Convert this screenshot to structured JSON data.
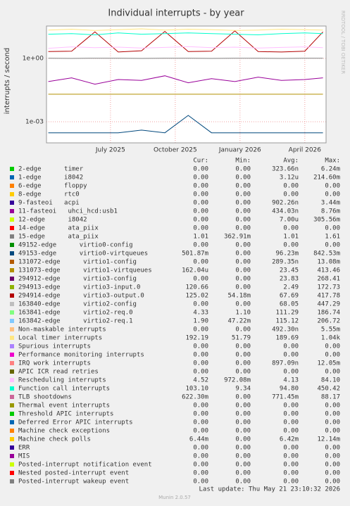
{
  "chart_data": {
    "type": "line",
    "title": "Individual interrupts - by year",
    "y_label": "interrupts / second",
    "side_text": "RRDTOOL / TOBI OETIKER",
    "log_y": true,
    "grid": true,
    "ylim": [
      0.0001,
      34
    ],
    "yticks": [
      {
        "value": 1,
        "label": "1e+00"
      },
      {
        "value": 0.001,
        "label": "1e-03"
      }
    ],
    "xlim": [
      2025.253,
      2026.332
    ],
    "xticks": [
      {
        "value": 2025.5,
        "label": "July 2025"
      },
      {
        "value": 2025.75,
        "label": "October 2025"
      },
      {
        "value": 2026.0,
        "label": "January 2026"
      },
      {
        "value": 2026.25,
        "label": "April 2026"
      }
    ],
    "x": [
      2025.26,
      2025.35,
      2025.44,
      2025.53,
      2025.62,
      2025.71,
      2025.8,
      2025.89,
      2025.98,
      2026.07,
      2026.16,
      2026.25,
      2026.32
    ],
    "columns": [
      "Cur:",
      "Min:",
      "Avg:",
      "Max:"
    ],
    "series": [
      {
        "name": "2-edge      timer",
        "color": "#00cc00",
        "stats": [
          "0.00",
          "0.00",
          "323.66n",
          "6.24m"
        ]
      },
      {
        "name": "1-edge      i8042",
        "color": "#0066b3",
        "stats": [
          "0.00",
          "0.00",
          "3.12u",
          "214.60m"
        ]
      },
      {
        "name": "6-edge      floppy",
        "color": "#ff8000",
        "stats": [
          "0.00",
          "0.00",
          "0.00",
          "0.00"
        ]
      },
      {
        "name": "8-edge      rtc0",
        "color": "#ffcc00",
        "stats": [
          "0.00",
          "0.00",
          "0.00",
          "0.00"
        ]
      },
      {
        "name": "9-fasteoi   acpi",
        "color": "#330099",
        "stats": [
          "0.00",
          "0.00",
          "902.26n",
          "3.44m"
        ]
      },
      {
        "name": "11-fasteoi   uhci_hcd:usb1",
        "color": "#990099",
        "stats": [
          "0.00",
          "0.00",
          "434.03n",
          "8.76m"
        ],
        "values": [
          0.08,
          0.12,
          0.06,
          0.1,
          0.09,
          0.15,
          0.07,
          0.11,
          0.08,
          0.13,
          0.09,
          0.1,
          0.12
        ]
      },
      {
        "name": "12-edge      i8042",
        "color": "#ccff00",
        "stats": [
          "0.00",
          "0.00",
          "7.00u",
          "305.56m"
        ]
      },
      {
        "name": "14-edge      ata_piix",
        "color": "#ff0000",
        "stats": [
          "0.00",
          "0.00",
          "0.00",
          "0.00"
        ]
      },
      {
        "name": "15-edge      ata_piix",
        "color": "#808080",
        "stats": [
          "1.01",
          "362.91m",
          "1.01",
          "1.61"
        ],
        "values": [
          1.01,
          1.0,
          1.02,
          1.01,
          1.0,
          1.01,
          1.02,
          1.0,
          1.01,
          1.01,
          1.0,
          1.02,
          1.01
        ]
      },
      {
        "name": "49152-edge      virtio0-config",
        "color": "#008f00",
        "stats": [
          "0.00",
          "0.00",
          "0.00",
          "0.00"
        ]
      },
      {
        "name": "49153-edge      virtio0-virtqueues",
        "color": "#00487d",
        "stats": [
          "501.87m",
          "0.00",
          "96.23m",
          "842.53m"
        ],
        "values": [
          0.0003,
          0.0003,
          0.0003,
          0.0003,
          0.0004,
          0.0003,
          0.002,
          0.0003,
          0.0003,
          0.0003,
          0.0003,
          0.0003,
          0.0003
        ]
      },
      {
        "name": "131072-edge      virtio1-config",
        "color": "#b35a00",
        "stats": [
          "0.00",
          "0.00",
          "289.35n",
          "13.08m"
        ]
      },
      {
        "name": "131073-edge      virtio1-virtqueues",
        "color": "#b38f00",
        "stats": [
          "162.04u",
          "0.00",
          "23.45",
          "413.46"
        ],
        "values": [
          0.02,
          0.02,
          0.02,
          0.02,
          0.02,
          0.02,
          0.02,
          0.02,
          0.02,
          0.02,
          0.02,
          0.02,
          0.02
        ]
      },
      {
        "name": "294912-edge      virtio3-config",
        "color": "#6b006b",
        "stats": [
          "0.00",
          "0.00",
          "23.83",
          "268.41"
        ]
      },
      {
        "name": "294913-edge      virtio3-input.0",
        "color": "#8fb300",
        "stats": [
          "120.66",
          "0.00",
          "2.49",
          "172.73"
        ]
      },
      {
        "name": "294914-edge      virtio3-output.0",
        "color": "#b30000",
        "stats": [
          "125.02",
          "54.18m",
          "67.69",
          "417.78"
        ],
        "values": [
          2.1,
          2.2,
          18,
          2.0,
          2.3,
          19,
          2.1,
          2.2,
          20,
          2.1,
          2.0,
          2.2,
          18
        ]
      },
      {
        "name": "163840-edge      virtio2-config",
        "color": "#bebebe",
        "stats": [
          "0.00",
          "0.00",
          "68.05",
          "447.29"
        ]
      },
      {
        "name": "163841-edge      virtio2-req.0",
        "color": "#80ff80",
        "stats": [
          "4.33",
          "1.10",
          "111.29",
          "186.74"
        ]
      },
      {
        "name": "163842-edge      virtio2-req.1",
        "color": "#80c9ff",
        "stats": [
          "1.90",
          "47.22m",
          "115.12",
          "206.72"
        ]
      },
      {
        "name": "Non-maskable interrupts",
        "color": "#ffc080",
        "stats": [
          "0.00",
          "0.00",
          "492.30n",
          "5.55m"
        ]
      },
      {
        "name": "Local timer interrupts",
        "color": "#ffe680",
        "stats": [
          "192.19",
          "51.79",
          "189.69",
          "1.04k"
        ],
        "values": [
          22,
          24,
          21,
          23,
          25,
          22,
          24,
          23,
          21,
          22,
          24,
          23,
          22
        ]
      },
      {
        "name": "Spurious interrupts",
        "color": "#aa80ff",
        "stats": [
          "0.00",
          "0.00",
          "0.00",
          "0.00"
        ]
      },
      {
        "name": "Performance monitoring interrupts",
        "color": "#ee00cc",
        "stats": [
          "0.00",
          "0.00",
          "0.00",
          "0.00"
        ]
      },
      {
        "name": "IRQ work interrupts",
        "color": "#ff8080",
        "stats": [
          "0.00",
          "0.00",
          "897.09n",
          "12.05m"
        ]
      },
      {
        "name": "APIC ICR read retries",
        "color": "#666600",
        "stats": [
          "0.00",
          "0.00",
          "0.00",
          "0.00"
        ]
      },
      {
        "name": "Rescheduling interrupts",
        "color": "#ffbfff",
        "stats": [
          "4.52",
          "972.08m",
          "4.13",
          "84.10"
        ],
        "values": [
          3,
          3.5,
          3.2,
          3.4,
          3.1,
          3.3,
          3.6,
          3.2,
          3.4,
          3.1,
          3.3,
          3.5,
          3.2
        ]
      },
      {
        "name": "Function call interrupts",
        "color": "#00ffcc",
        "stats": [
          "103.10",
          "9.34",
          "94.80",
          "450.42"
        ],
        "values": [
          14,
          15,
          13,
          16,
          14,
          15,
          16,
          15,
          14,
          13,
          15,
          16,
          15
        ]
      },
      {
        "name": "TLB shootdowns",
        "color": "#cc6699",
        "stats": [
          "622.30m",
          "0.00",
          "771.45m",
          "88.17"
        ]
      },
      {
        "name": "Thermal event interrupts",
        "color": "#999900",
        "stats": [
          "0.00",
          "0.00",
          "0.00",
          "0.00"
        ]
      },
      {
        "name": "Threshold APIC interrupts",
        "color": "#00cc00",
        "stats": [
          "0.00",
          "0.00",
          "0.00",
          "0.00"
        ]
      },
      {
        "name": "Deferred Error APIC interrupts",
        "color": "#0066b3",
        "stats": [
          "0.00",
          "0.00",
          "0.00",
          "0.00"
        ]
      },
      {
        "name": "Machine check exceptions",
        "color": "#ff8000",
        "stats": [
          "0.00",
          "0.00",
          "0.00",
          "0.00"
        ]
      },
      {
        "name": "Machine check polls",
        "color": "#ffcc00",
        "stats": [
          "6.44m",
          "0.00",
          "6.42m",
          "12.14m"
        ]
      },
      {
        "name": "ERR",
        "color": "#330099",
        "stats": [
          "0.00",
          "0.00",
          "0.00",
          "0.00"
        ]
      },
      {
        "name": "MIS",
        "color": "#990099",
        "stats": [
          "0.00",
          "0.00",
          "0.00",
          "0.00"
        ]
      },
      {
        "name": "Posted-interrupt notification event",
        "color": "#ccff00",
        "stats": [
          "0.00",
          "0.00",
          "0.00",
          "0.00"
        ]
      },
      {
        "name": "Nested posted-interrupt event",
        "color": "#ff0000",
        "stats": [
          "0.00",
          "0.00",
          "0.00",
          "0.00"
        ]
      },
      {
        "name": "Posted-interrupt wakeup event",
        "color": "#808080",
        "stats": [
          "0.00",
          "0.00",
          "0.00",
          "0.00"
        ]
      }
    ],
    "last_update": "Last update: Thu May 21 23:10:32 2026",
    "footer": "Munin 2.0.57"
  }
}
